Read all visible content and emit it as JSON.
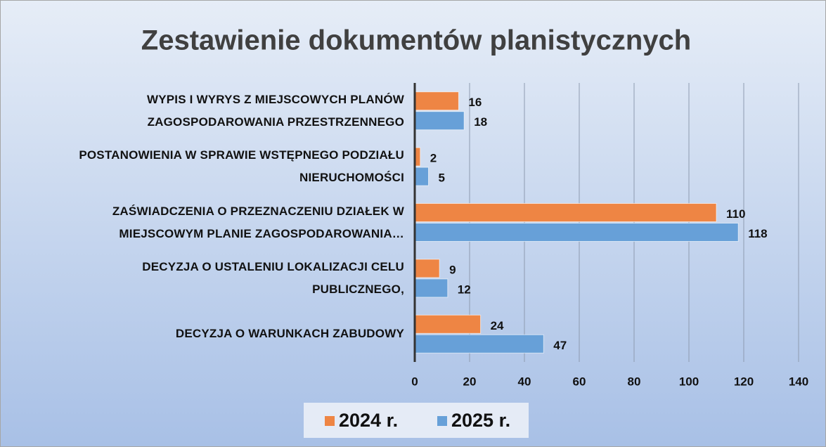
{
  "chart_data": {
    "type": "bar",
    "orientation": "horizontal",
    "title": "Zestawienie dokumentów planistycznych",
    "categories": [
      "WYPIS I WYRYS Z MIEJSCOWYCH PLANÓW\nZAGOSPODAROWANIA PRZESTRZENNEGO",
      "POSTANOWIENIA W SPRAWIE WSTĘPNEGO PODZIAŁU\nNIERUCHOMOŚCI",
      "ZAŚWIADCZENIA O PRZEZNACZENIU DZIAŁEK W\nMIEJSCOWYM PLANIE ZAGOSPODAROWANIA…",
      "DECYZJA O USTALENIU LOKALIZACJI CELU\nPUBLICZNEGO,",
      "DECYZJA  O WARUNKACH ZABUDOWY"
    ],
    "series": [
      {
        "name": "2024 r.",
        "color": "#ee8544",
        "values": [
          16,
          2,
          110,
          9,
          24
        ]
      },
      {
        "name": "2025 r.",
        "color": "#67a0d8",
        "values": [
          18,
          5,
          118,
          12,
          47
        ]
      }
    ],
    "xlim": [
      0,
      140
    ],
    "xticks": [
      0,
      20,
      40,
      60,
      80,
      100,
      120,
      140
    ],
    "grid": true,
    "legend": "bottom"
  }
}
